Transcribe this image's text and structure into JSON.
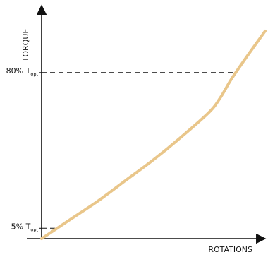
{
  "chart_data": {
    "type": "line",
    "title": "",
    "xlabel": "ROTATIONS",
    "ylabel": "TORQUE",
    "ylim": [
      0,
      100
    ],
    "xlim": [
      0,
      100
    ],
    "grid": false,
    "reference_lines": [
      {
        "y": 5,
        "label": "5% T",
        "subscript": "opt"
      },
      {
        "y": 80,
        "label": "80% T",
        "subscript": "opt"
      }
    ],
    "series": [
      {
        "x": [
          0,
          12.5,
          25,
          37.5,
          50,
          62.5,
          75,
          80,
          85,
          92,
          100
        ],
        "y": [
          0,
          9,
          18,
          28,
          38,
          49,
          61,
          68,
          77,
          88,
          100
        ]
      }
    ],
    "colors": {
      "curve": "#e9c68a",
      "axis": "#111111"
    }
  }
}
